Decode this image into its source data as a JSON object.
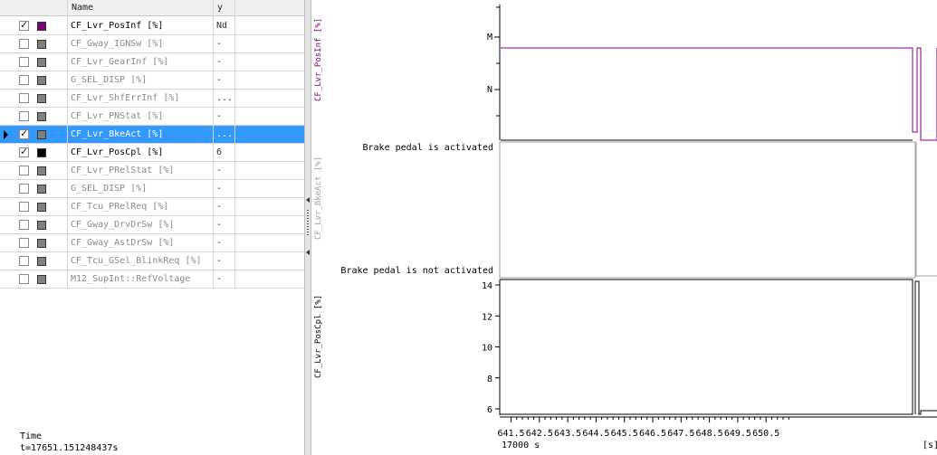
{
  "table": {
    "columns": [
      "Name",
      "y"
    ],
    "rows": [
      {
        "name": "CF_Lvr_PosInf [%]",
        "y": "Nd",
        "checked": true,
        "color": "#800080",
        "active": true,
        "selected": false
      },
      {
        "name": "CF_Gway_IGNSw [%]",
        "y": "-",
        "checked": false,
        "color": "#808080",
        "active": false,
        "selected": false
      },
      {
        "name": "CF_Lvr_GearInf [%]",
        "y": "-",
        "checked": false,
        "color": "#808080",
        "active": false,
        "selected": false
      },
      {
        "name": "G_SEL_DISP [%]",
        "y": "-",
        "checked": false,
        "color": "#808080",
        "active": false,
        "selected": false
      },
      {
        "name": "CF_Lvr_ShfErrInf [%]",
        "y": "...",
        "checked": false,
        "color": "#808080",
        "active": false,
        "selected": false
      },
      {
        "name": "CF_Lvr_PNStat [%]",
        "y": "-",
        "checked": false,
        "color": "#808080",
        "active": false,
        "selected": false
      },
      {
        "name": "CF_Lvr_BkeAct [%]",
        "y": "...",
        "checked": true,
        "color": "#808080",
        "active": true,
        "selected": true
      },
      {
        "name": "CF_Lvr_PosCpl [%]",
        "y": "6",
        "checked": true,
        "color": "#000000",
        "active": true,
        "selected": false
      },
      {
        "name": "CF_Lvr_PRelStat [%]",
        "y": "-",
        "checked": false,
        "color": "#808080",
        "active": false,
        "selected": false
      },
      {
        "name": "G_SEL_DISP [%]",
        "y": "-",
        "checked": false,
        "color": "#808080",
        "active": false,
        "selected": false
      },
      {
        "name": "CF_Tcu_PRelReq [%]",
        "y": "-",
        "checked": false,
        "color": "#808080",
        "active": false,
        "selected": false
      },
      {
        "name": "CF_Gway_DrvDrSw [%]",
        "y": "-",
        "checked": false,
        "color": "#808080",
        "active": false,
        "selected": false
      },
      {
        "name": "CF_Gway_AstDrSw [%]",
        "y": "-",
        "checked": false,
        "color": "#808080",
        "active": false,
        "selected": false
      },
      {
        "name": "CF_Tcu_GSel_BlinkReq [%]",
        "y": "-",
        "checked": false,
        "color": "#808080",
        "active": false,
        "selected": false
      },
      {
        "name": "M12_SupInt::RefVoltage",
        "y": "-",
        "checked": false,
        "color": "#808080",
        "active": false,
        "selected": false
      }
    ]
  },
  "status": {
    "time_label": "Time",
    "time_value": "t=17651.151248437s"
  },
  "plots": {
    "plot1": {
      "ylabel": "CF_Lvr_PosInf [%]",
      "ticks": [
        "M",
        "N"
      ],
      "color": "#800080"
    },
    "plot2": {
      "ylabel": "CF_Lvr_BkeAct [%]",
      "upper": "Brake pedal is activated",
      "lower": "Brake pedal is not activated",
      "color": "#a0a0a0"
    },
    "plot3": {
      "ylabel": "CF_Lvr_PosCpl [%]",
      "ticks": [
        "14",
        "12",
        "10",
        "8",
        "6"
      ],
      "ylim": [
        6,
        14
      ],
      "color": "#000000"
    },
    "xaxis": {
      "ticks": [
        "641.5",
        "642.5",
        "643.5",
        "644.5",
        "645.5",
        "646.5",
        "647.5",
        "648.5",
        "649.5",
        "650.5"
      ],
      "offset": "17000 s",
      "unit": "[s]"
    }
  }
}
